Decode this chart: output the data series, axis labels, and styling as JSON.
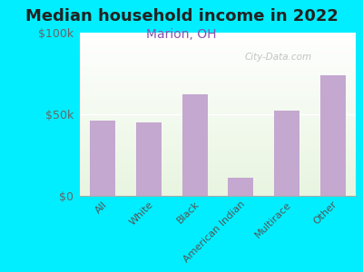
{
  "title": "Median household income in 2022",
  "subtitle": "Marion, OH",
  "categories": [
    "All",
    "White",
    "Black",
    "American Indian",
    "Multirace",
    "Other"
  ],
  "values": [
    46000,
    45000,
    62000,
    11000,
    52000,
    74000
  ],
  "bar_color": "#c4a8d0",
  "title_fontsize": 13,
  "title_color": "#222222",
  "subtitle_color": "#8855aa",
  "subtitle_fontsize": 10,
  "background_color": "#00eeff",
  "ylabel_ticks": [
    "$0",
    "$50k",
    "$100k"
  ],
  "ytick_vals": [
    0,
    50000,
    100000
  ],
  "ylim": [
    0,
    100000
  ],
  "watermark": "City-Data.com"
}
